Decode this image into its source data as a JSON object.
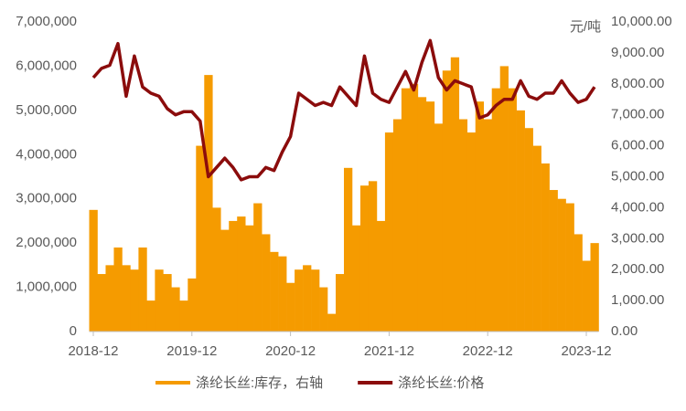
{
  "chart_data": {
    "type": "bar-line",
    "y2_title": "元/吨",
    "categories": [
      "2018-12",
      null,
      null,
      null,
      null,
      null,
      null,
      null,
      null,
      null,
      null,
      null,
      "2019-12",
      null,
      null,
      null,
      null,
      null,
      null,
      null,
      null,
      null,
      null,
      null,
      "2020-12",
      null,
      null,
      null,
      null,
      null,
      null,
      null,
      null,
      null,
      null,
      null,
      "2021-12",
      null,
      null,
      null,
      null,
      null,
      null,
      null,
      null,
      null,
      null,
      null,
      "2022-12",
      null,
      null,
      null,
      null,
      null,
      null,
      null,
      null,
      null,
      null,
      null,
      "2023-12",
      null
    ],
    "series": [
      {
        "name": "涤纶长丝:库存，右轴",
        "color": "#f59b00",
        "kind": "area",
        "values": [
          2750000,
          1300000,
          1500000,
          1900000,
          1500000,
          1400000,
          1900000,
          700000,
          1400000,
          1300000,
          1000000,
          700000,
          1200000,
          4200000,
          5800000,
          2800000,
          2300000,
          2500000,
          2600000,
          2400000,
          2900000,
          2200000,
          1800000,
          1700000,
          1100000,
          1400000,
          1500000,
          1400000,
          1000000,
          400000,
          1300000,
          3700000,
          2400000,
          3300000,
          3400000,
          2500000,
          4500000,
          4800000,
          5500000,
          5600000,
          5300000,
          5200000,
          4700000,
          5900000,
          6200000,
          4800000,
          4500000,
          5200000,
          4800000,
          5500000,
          6000000,
          5500000,
          5000000,
          4600000,
          4200000,
          3800000,
          3200000,
          3000000,
          2900000,
          2200000,
          1600000,
          2000000
        ]
      },
      {
        "name": "涤纶长丝:价格",
        "color": "#8b0c0c",
        "kind": "line",
        "axis": "y2",
        "values": [
          8200,
          8500,
          8600,
          9300,
          7600,
          8900,
          7900,
          7700,
          7600,
          7200,
          7000,
          7100,
          7100,
          6800,
          5000,
          5300,
          5600,
          5300,
          4900,
          5000,
          5000,
          5300,
          5200,
          5800,
          6300,
          7700,
          7500,
          7300,
          7400,
          7300,
          7900,
          7600,
          7300,
          8900,
          7700,
          7500,
          7400,
          7900,
          8400,
          7800,
          8700,
          9400,
          8200,
          7800,
          8100,
          8000,
          7900,
          6900,
          7000,
          7300,
          7500,
          7500,
          8100,
          7600,
          7500,
          7700,
          7700,
          8100,
          7700,
          7400,
          7500,
          7900
        ]
      }
    ],
    "ylim": [
      0,
      7000000
    ],
    "yticks": [
      0,
      {
        "value": 1000000,
        "label": "1,000,000"
      },
      {
        "value": 2000000,
        "label": "2,000,000"
      },
      {
        "value": 3000000,
        "label": "3,000,000"
      },
      {
        "value": 4000000,
        "label": "4,000,000"
      },
      {
        "value": 5000000,
        "label": "5,000,000"
      },
      {
        "value": 6000000,
        "label": "6,000,000"
      },
      {
        "value": 7000000,
        "label": "7,000,000"
      }
    ],
    "y2lim": [
      0,
      10000
    ],
    "y2ticks": [
      {
        "value": 0,
        "label": "0.00"
      },
      {
        "value": 1000,
        "label": "1,000.00"
      },
      {
        "value": 2000,
        "label": "2,000.00"
      },
      {
        "value": 3000,
        "label": "3,000.00"
      },
      {
        "value": 4000,
        "label": "4,000.00"
      },
      {
        "value": 5000,
        "label": "5,000.00"
      },
      {
        "value": 6000,
        "label": "6,000.00"
      },
      {
        "value": 7000,
        "label": "7,000.00"
      },
      {
        "value": 8000,
        "label": "8,000.00"
      },
      {
        "value": 9000,
        "label": "9,000.00"
      },
      {
        "value": 10000,
        "label": "10,000.00"
      }
    ],
    "grid": false,
    "legend": "bottom"
  }
}
